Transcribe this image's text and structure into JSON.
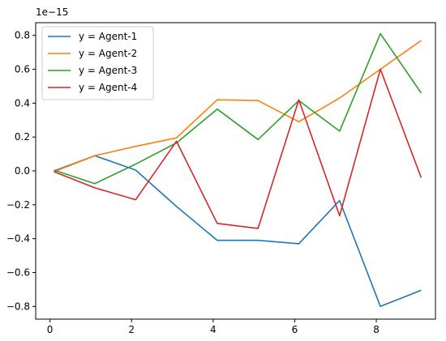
{
  "chart_data": {
    "type": "line",
    "title": "",
    "xlabel": "",
    "ylabel": "",
    "y_offset_label": "1e−15",
    "xlim": [
      -0.35,
      9.45
    ],
    "ylim": [
      -0.875,
      0.875
    ],
    "x_ticks": [
      0,
      2,
      4,
      6,
      8
    ],
    "x_tick_labels": [
      "0",
      "2",
      "4",
      "6",
      "8"
    ],
    "y_ticks": [
      -0.8,
      -0.6,
      -0.4,
      -0.2,
      0.0,
      0.2,
      0.4,
      0.6,
      0.8
    ],
    "y_tick_labels": [
      "−0.8",
      "−0.6",
      "−0.4",
      "−0.2",
      "0.0",
      "0.2",
      "0.4",
      "0.6",
      "0.8"
    ],
    "grid": false,
    "legend": {
      "placement": "upper-left"
    },
    "x": [
      0.1,
      1.1,
      2.1,
      3.1,
      4.1,
      5.1,
      6.1,
      7.1,
      8.1,
      9.1
    ],
    "series": [
      {
        "name": "y = Agent-1",
        "color": "#1f77b4",
        "values": [
          0.0,
          0.09,
          0.005,
          -0.21,
          -0.41,
          -0.41,
          -0.43,
          -0.175,
          -0.8,
          -0.705
        ]
      },
      {
        "name": "y = Agent-2",
        "color": "#ff7f0e",
        "values": [
          -0.005,
          0.09,
          0.145,
          0.195,
          0.42,
          0.415,
          0.29,
          0.43,
          0.6,
          0.77
        ]
      },
      {
        "name": "y = Agent-3",
        "color": "#2ca02c",
        "values": [
          0.005,
          -0.075,
          0.04,
          0.165,
          0.365,
          0.185,
          0.415,
          0.235,
          0.81,
          0.46
        ]
      },
      {
        "name": "y = Agent-4",
        "color": "#d62728",
        "values": [
          -0.005,
          -0.1,
          -0.17,
          0.175,
          -0.31,
          -0.34,
          0.42,
          -0.265,
          0.6,
          -0.04
        ]
      }
    ]
  }
}
